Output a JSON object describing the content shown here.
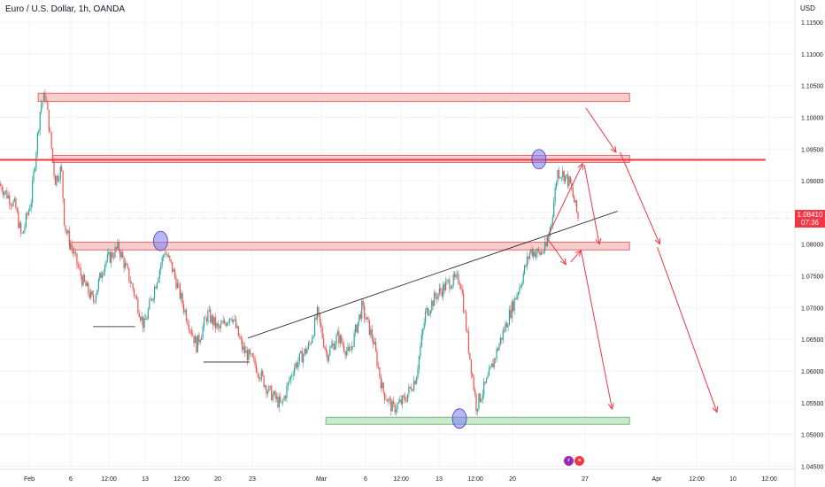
{
  "header": {
    "title": "Euro / U.S. Dollar, 1h, OANDA",
    "currency": "USD"
  },
  "price_tag": {
    "price": "1.08410",
    "countdown": "07:36"
  },
  "colors": {
    "bull": "#26a69a",
    "bear": "#ef5350",
    "resistance_zone": "#f7c9c9",
    "support_zone": "#c8e6c9",
    "resistance_line": "#f23645",
    "trendline": "#131722",
    "arrow": "#f23645",
    "highlight": "#7b7bf0"
  },
  "chart_data": {
    "type": "candlestick",
    "title": "Euro / U.S. Dollar, 1h, OANDA",
    "y_unit": "USD",
    "ylim": [
      1.0445,
      1.1185
    ],
    "y_ticks": [
      "1.04500",
      "1.05000",
      "1.05500",
      "1.06000",
      "1.06500",
      "1.07000",
      "1.07500",
      "1.08000",
      "1.08500",
      "1.09000",
      "1.09500",
      "1.10000",
      "1.10500",
      "1.11000",
      "1.11500"
    ],
    "x_ticks": [
      "Feb",
      "6",
      "12:00",
      "13",
      "12:00",
      "20",
      "23",
      "Mar",
      "6",
      "12:00",
      "13",
      "12:00",
      "20",
      "27",
      "Apr",
      "12:00",
      "10",
      "12:00"
    ],
    "last_price": 1.0841,
    "price_path": [
      [
        0.0,
        1.0895
      ],
      [
        0.02,
        1.086
      ],
      [
        0.028,
        1.081
      ],
      [
        0.04,
        1.087
      ],
      [
        0.052,
        1.102
      ],
      [
        0.058,
        1.1035
      ],
      [
        0.064,
        1.097
      ],
      [
        0.07,
        1.09
      ],
      [
        0.078,
        1.092
      ],
      [
        0.082,
        1.083
      ],
      [
        0.092,
        1.079
      ],
      [
        0.104,
        1.0745
      ],
      [
        0.118,
        1.071
      ],
      [
        0.132,
        1.077
      ],
      [
        0.15,
        1.0795
      ],
      [
        0.168,
        1.073
      ],
      [
        0.182,
        1.067
      ],
      [
        0.198,
        1.0745
      ],
      [
        0.208,
        1.079
      ],
      [
        0.218,
        1.076
      ],
      [
        0.232,
        1.07
      ],
      [
        0.248,
        1.064
      ],
      [
        0.262,
        1.069
      ],
      [
        0.276,
        1.0665
      ],
      [
        0.292,
        1.069
      ],
      [
        0.306,
        1.0635
      ],
      [
        0.322,
        1.061
      ],
      [
        0.338,
        1.057
      ],
      [
        0.355,
        1.0545
      ],
      [
        0.37,
        1.0605
      ],
      [
        0.39,
        1.064
      ],
      [
        0.4,
        1.069
      ],
      [
        0.412,
        1.0625
      ],
      [
        0.426,
        1.0655
      ],
      [
        0.44,
        1.0625
      ],
      [
        0.456,
        1.07
      ],
      [
        0.47,
        1.065
      ],
      [
        0.482,
        1.057
      ],
      [
        0.495,
        1.054
      ],
      [
        0.51,
        1.0555
      ],
      [
        0.524,
        1.059
      ],
      [
        0.536,
        1.069
      ],
      [
        0.55,
        1.072
      ],
      [
        0.566,
        1.074
      ],
      [
        0.58,
        1.0745
      ],
      [
        0.59,
        1.064
      ],
      [
        0.6,
        1.0545
      ],
      [
        0.614,
        1.0585
      ],
      [
        0.628,
        1.064
      ],
      [
        0.642,
        1.069
      ],
      [
        0.656,
        1.074
      ],
      [
        0.668,
        1.079
      ],
      [
        0.68,
        1.0785
      ],
      [
        0.688,
        1.0795
      ],
      [
        0.695,
        1.084
      ],
      [
        0.702,
        1.0915
      ],
      [
        0.71,
        1.091
      ],
      [
        0.718,
        1.0895
      ],
      [
        0.728,
        1.0841
      ]
    ],
    "zones": [
      {
        "kind": "resistance",
        "from": 0.048,
        "to": 0.792,
        "low": 1.1025,
        "high": 1.1038
      },
      {
        "kind": "resistance",
        "from": 0.066,
        "to": 0.792,
        "low": 1.093,
        "high": 1.094
      },
      {
        "kind": "resistance",
        "from": 0.088,
        "to": 0.792,
        "low": 1.0791,
        "high": 1.0803
      },
      {
        "kind": "support",
        "from": 0.41,
        "to": 0.792,
        "low": 1.0517,
        "high": 1.0527
      }
    ],
    "horizontal_line": {
      "price": 1.0933,
      "from": 0.0,
      "to": 0.963
    },
    "trendline": {
      "from": [
        0.312,
        1.0652
      ],
      "to": [
        0.777,
        1.0852
      ]
    },
    "support_lines": [
      {
        "from": 0.117,
        "to": 0.17,
        "price": 1.067
      },
      {
        "from": 0.256,
        "to": 0.314,
        "price": 1.0614
      }
    ],
    "highlights": [
      {
        "x": 0.202,
        "price": 1.0805
      },
      {
        "x": 0.678,
        "price": 1.0934
      },
      {
        "x": 0.578,
        "price": 1.0525
      }
    ],
    "projection_arrows": [
      {
        "from": [
          0.688,
          1.081
        ],
        "to": [
          0.733,
          1.0927
        ]
      },
      {
        "from": [
          0.735,
          1.0925
        ],
        "to": [
          0.754,
          1.08
        ]
      },
      {
        "from": [
          0.688,
          1.081
        ],
        "to": [
          0.712,
          1.0768
        ]
      },
      {
        "from": [
          0.718,
          1.0772
        ],
        "to": [
          0.731,
          1.079
        ]
      },
      {
        "from": [
          0.731,
          1.079
        ],
        "to": [
          0.77,
          1.054
        ]
      },
      {
        "from": [
          0.737,
          1.1015
        ],
        "to": [
          0.775,
          1.0945
        ]
      },
      {
        "from": [
          0.78,
          1.0945
        ],
        "to": [
          0.83,
          1.08
        ]
      },
      {
        "from": [
          0.827,
          1.0795
        ],
        "to": [
          0.902,
          1.0535
        ]
      }
    ]
  }
}
